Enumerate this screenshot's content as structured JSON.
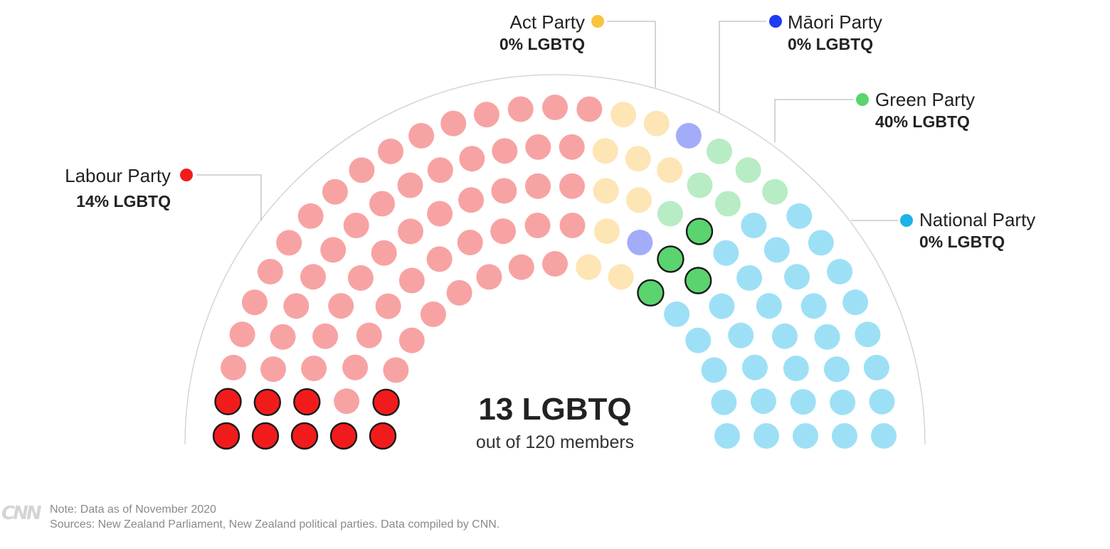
{
  "chart_data": {
    "type": "parliament",
    "total_members": 120,
    "total_lgbtq": 13,
    "center": {
      "headline": "13 LGBTQ",
      "subline": "out of 120 members"
    },
    "parties": [
      {
        "name": "Labour Party",
        "stat": "14% LGBTQ",
        "seats": 65,
        "lgbtq": 9,
        "color": "#f21b1b",
        "faded": "#f7a3a3"
      },
      {
        "name": "Act Party",
        "stat": "0% LGBTQ",
        "seats": 10,
        "lgbtq": 0,
        "color": "#f8c33d",
        "faded": "#fde5b5"
      },
      {
        "name": "Māori Party",
        "stat": "0% LGBTQ",
        "seats": 2,
        "lgbtq": 0,
        "color": "#1f3cf0",
        "faded": "#a3acf8"
      },
      {
        "name": "Green Party",
        "stat": "40% LGBTQ",
        "seats": 10,
        "lgbtq": 4,
        "color": "#59d46e",
        "faded": "#b8ecc4"
      },
      {
        "name": "National Party",
        "stat": "0% LGBTQ",
        "seats": 33,
        "lgbtq": 0,
        "color": "#1db2e8",
        "faded": "#9de0f6"
      }
    ]
  },
  "footer": {
    "logo": "CNN",
    "note": "Note: Data as of November 2020",
    "sources": "Sources: New Zealand Parliament, New Zealand political parties. Data compiled by CNN."
  }
}
